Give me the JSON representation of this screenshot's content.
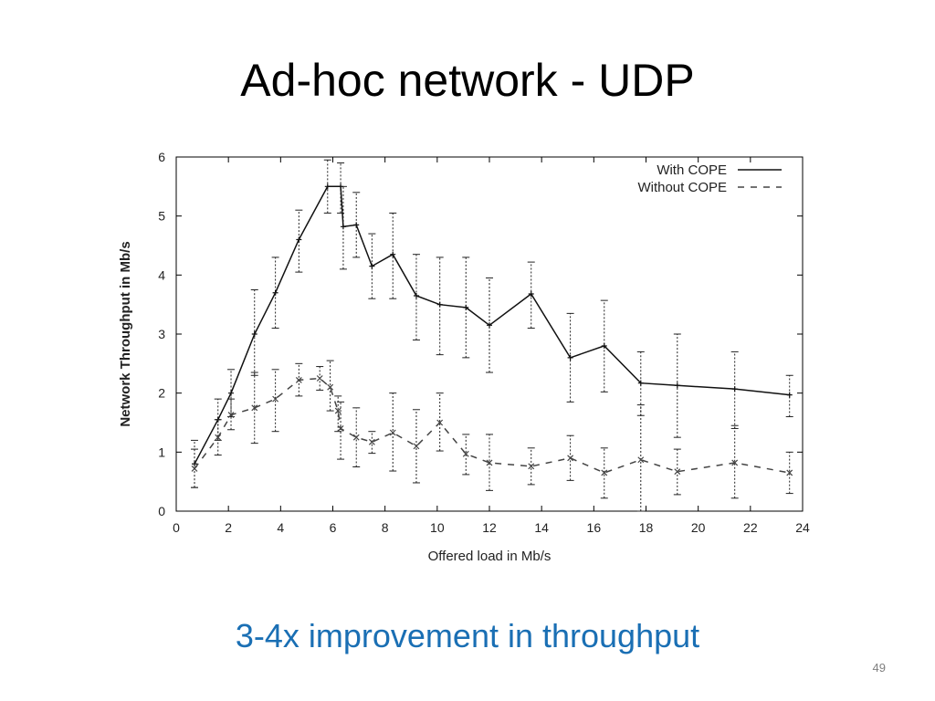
{
  "slide": {
    "title": "Ad-hoc network - UDP",
    "caption": "3-4x improvement in throughput",
    "page_number": "49"
  },
  "colors": {
    "caption": "#1a6fb4",
    "series_with": "#111111",
    "series_without": "#444444"
  },
  "chart_data": {
    "type": "line",
    "xlabel": "Offered load in Mb/s",
    "ylabel": "Network Throughput in Mb/s",
    "xlim": [
      0,
      24
    ],
    "ylim": [
      0,
      6
    ],
    "xticks": [
      0,
      2,
      4,
      6,
      8,
      10,
      12,
      14,
      16,
      18,
      20,
      22,
      24
    ],
    "yticks": [
      0,
      1,
      2,
      3,
      4,
      5,
      6
    ],
    "legend_placement": "top-right",
    "grid": false,
    "error_bars": true,
    "series": [
      {
        "name": "With COPE",
        "style": "solid",
        "points": [
          {
            "x": 0.7,
            "y": 0.8,
            "lo": 0.4,
            "hi": 1.2
          },
          {
            "x": 1.6,
            "y": 1.55,
            "lo": 1.2,
            "hi": 1.9
          },
          {
            "x": 2.1,
            "y": 2.0,
            "lo": 1.6,
            "hi": 2.4
          },
          {
            "x": 3.0,
            "y": 3.0,
            "lo": 2.3,
            "hi": 3.75
          },
          {
            "x": 3.8,
            "y": 3.7,
            "lo": 3.1,
            "hi": 4.3
          },
          {
            "x": 4.7,
            "y": 4.6,
            "lo": 4.05,
            "hi": 5.1
          },
          {
            "x": 5.8,
            "y": 5.5,
            "lo": 5.05,
            "hi": 5.95
          },
          {
            "x": 6.3,
            "y": 5.5,
            "lo": 5.05,
            "hi": 5.9
          },
          {
            "x": 6.4,
            "y": 4.82,
            "lo": 4.1,
            "hi": 5.5
          },
          {
            "x": 6.9,
            "y": 4.85,
            "lo": 4.3,
            "hi": 5.4
          },
          {
            "x": 7.5,
            "y": 4.15,
            "lo": 3.6,
            "hi": 4.7
          },
          {
            "x": 8.3,
            "y": 4.35,
            "lo": 3.6,
            "hi": 5.05
          },
          {
            "x": 9.2,
            "y": 3.65,
            "lo": 2.9,
            "hi": 4.35
          },
          {
            "x": 10.1,
            "y": 3.5,
            "lo": 2.65,
            "hi": 4.3
          },
          {
            "x": 11.1,
            "y": 3.45,
            "lo": 2.6,
            "hi": 4.3
          },
          {
            "x": 12.0,
            "y": 3.15,
            "lo": 2.35,
            "hi": 3.95
          },
          {
            "x": 13.6,
            "y": 3.68,
            "lo": 3.1,
            "hi": 4.22
          },
          {
            "x": 15.1,
            "y": 2.6,
            "lo": 1.85,
            "hi": 3.35
          },
          {
            "x": 16.4,
            "y": 2.8,
            "lo": 2.02,
            "hi": 3.57
          },
          {
            "x": 17.8,
            "y": 2.17,
            "lo": 1.62,
            "hi": 2.7
          },
          {
            "x": 19.2,
            "y": 2.13,
            "lo": 1.25,
            "hi": 3.0
          },
          {
            "x": 21.4,
            "y": 2.07,
            "lo": 1.4,
            "hi": 2.7
          },
          {
            "x": 23.5,
            "y": 1.97,
            "lo": 1.6,
            "hi": 2.3
          }
        ]
      },
      {
        "name": "Without COPE",
        "style": "dashed",
        "points": [
          {
            "x": 0.7,
            "y": 0.72,
            "lo": 0.4,
            "hi": 1.05
          },
          {
            "x": 1.6,
            "y": 1.25,
            "lo": 0.95,
            "hi": 1.55
          },
          {
            "x": 2.1,
            "y": 1.63,
            "lo": 1.38,
            "hi": 1.9
          },
          {
            "x": 3.0,
            "y": 1.75,
            "lo": 1.15,
            "hi": 2.35
          },
          {
            "x": 3.8,
            "y": 1.9,
            "lo": 1.35,
            "hi": 2.4
          },
          {
            "x": 4.7,
            "y": 2.22,
            "lo": 1.95,
            "hi": 2.5
          },
          {
            "x": 5.5,
            "y": 2.25,
            "lo": 2.05,
            "hi": 2.45
          },
          {
            "x": 5.9,
            "y": 2.1,
            "lo": 1.7,
            "hi": 2.55
          },
          {
            "x": 6.2,
            "y": 1.7,
            "lo": 1.35,
            "hi": 1.95
          },
          {
            "x": 6.3,
            "y": 1.4,
            "lo": 0.88,
            "hi": 1.85
          },
          {
            "x": 6.9,
            "y": 1.25,
            "lo": 0.75,
            "hi": 1.75
          },
          {
            "x": 7.5,
            "y": 1.17,
            "lo": 0.98,
            "hi": 1.35
          },
          {
            "x": 8.3,
            "y": 1.33,
            "lo": 0.68,
            "hi": 2.0
          },
          {
            "x": 9.2,
            "y": 1.1,
            "lo": 0.48,
            "hi": 1.72
          },
          {
            "x": 10.1,
            "y": 1.5,
            "lo": 1.02,
            "hi": 2.0
          },
          {
            "x": 11.1,
            "y": 0.97,
            "lo": 0.62,
            "hi": 1.3
          },
          {
            "x": 12.0,
            "y": 0.82,
            "lo": 0.35,
            "hi": 1.3
          },
          {
            "x": 13.6,
            "y": 0.76,
            "lo": 0.45,
            "hi": 1.07
          },
          {
            "x": 15.1,
            "y": 0.9,
            "lo": 0.52,
            "hi": 1.28
          },
          {
            "x": 16.4,
            "y": 0.65,
            "lo": 0.22,
            "hi": 1.07
          },
          {
            "x": 17.8,
            "y": 0.87,
            "lo": 0.0,
            "hi": 1.8
          },
          {
            "x": 19.2,
            "y": 0.67,
            "lo": 0.28,
            "hi": 1.05
          },
          {
            "x": 21.4,
            "y": 0.82,
            "lo": 0.22,
            "hi": 1.45
          },
          {
            "x": 23.5,
            "y": 0.65,
            "lo": 0.3,
            "hi": 1.0
          }
        ]
      }
    ]
  }
}
